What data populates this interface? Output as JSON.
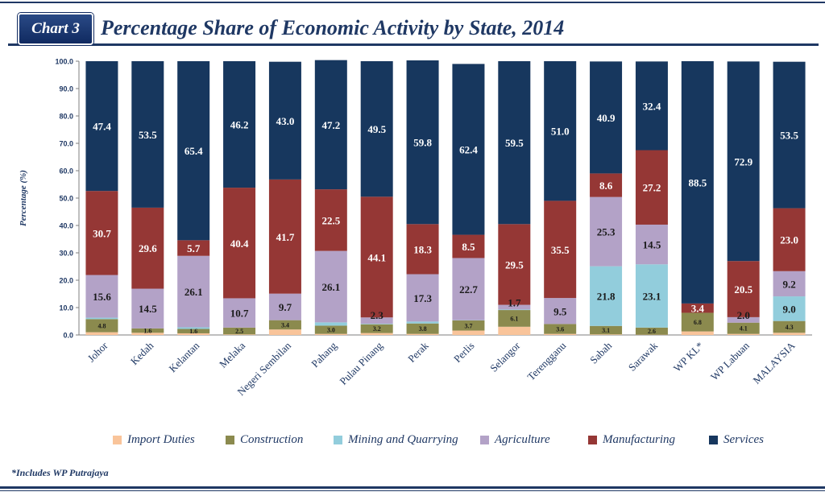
{
  "header": {
    "badge": "Chart 3",
    "title": "Percentage Share of Economic Activity by State, 2014"
  },
  "footnote": "*Includes WP Putrajaya",
  "colors": {
    "import_duties": "#f9c49a",
    "construction": "#8b8a4e",
    "mining": "#92cddc",
    "agriculture": "#b3a2c7",
    "manufacturing": "#953735",
    "services": "#17375e"
  },
  "chart_data": {
    "type": "bar",
    "stacked": true,
    "ylabel": "Percentage  (%)",
    "ylim": [
      0,
      100
    ],
    "yticks": [
      "0.0",
      "10.0",
      "20.0",
      "30.0",
      "40.0",
      "50.0",
      "60.0",
      "70.0",
      "80.0",
      "90.0",
      "100.0"
    ],
    "categories": [
      "Johor",
      "Kedah",
      "Kelantan",
      "Melaka",
      "Negeri Sembilan",
      "Pahang",
      "Pulau Pinang",
      "Perak",
      "Perlis",
      "Selangor",
      "Terengganu",
      "Sabah",
      "Sarawak",
      "WP KL*",
      "WP Labuan",
      "MALAYSIA"
    ],
    "legend_position": "bottom",
    "series": [
      {
        "name": "Import Duties",
        "key": "import_duties",
        "values": [
          1.0,
          0.8,
          0.6,
          0.2,
          2.0,
          0.4,
          0.7,
          0.4,
          1.6,
          3.0,
          0.4,
          0.2,
          0.1,
          1.3,
          0.4,
          0.8
        ],
        "labels": [
          "",
          "",
          "",
          "",
          "",
          "",
          "",
          "",
          "",
          "",
          "",
          "",
          "",
          "",
          "",
          ""
        ]
      },
      {
        "name": "Construction",
        "key": "construction",
        "values": [
          4.8,
          1.6,
          1.6,
          2.5,
          3.4,
          3.0,
          3.2,
          3.8,
          3.7,
          6.1,
          3.6,
          3.1,
          2.6,
          6.8,
          4.1,
          4.3
        ],
        "labels": [
          "4.8",
          "1.6",
          "1.6",
          "2.5",
          "3.4",
          "3.0",
          "3.2",
          "3.8",
          "3.7",
          "6.1",
          "3.6",
          "3.1",
          "2.6",
          "6.8",
          "4.1",
          "4.3"
        ]
      },
      {
        "name": "Mining and Quarrying",
        "key": "mining",
        "values": [
          0.5,
          0.0,
          0.6,
          0.0,
          0.0,
          1.2,
          0.2,
          0.7,
          0.1,
          0.2,
          0.0,
          21.8,
          23.1,
          0.0,
          0.0,
          9.0
        ],
        "labels": [
          "",
          "",
          "",
          "",
          "",
          "",
          "",
          "",
          "",
          "",
          "",
          "21.8",
          "23.1",
          "",
          "",
          "9.0"
        ]
      },
      {
        "name": "Agriculture",
        "key": "agriculture",
        "values": [
          15.6,
          14.5,
          26.1,
          10.7,
          9.7,
          26.1,
          2.3,
          17.3,
          22.7,
          1.7,
          9.5,
          25.3,
          14.5,
          0.0,
          2.0,
          9.2
        ],
        "labels": [
          "15.6",
          "14.5",
          "26.1",
          "10.7",
          "9.7",
          "26.1",
          "2.3",
          "17.3",
          "22.7",
          "1.7",
          "9.5",
          "25.3",
          "14.5",
          "",
          "2.0",
          "9.2"
        ]
      },
      {
        "name": "Manufacturing",
        "key": "manufacturing",
        "values": [
          30.7,
          29.6,
          5.7,
          40.4,
          41.7,
          22.5,
          44.1,
          18.3,
          8.5,
          29.5,
          35.5,
          8.6,
          27.2,
          3.4,
          20.5,
          23.0
        ],
        "labels": [
          "30.7",
          "29.6",
          "5.7",
          "40.4",
          "41.7",
          "22.5",
          "44.1",
          "18.3",
          "8.5",
          "29.5",
          "35.5",
          "8.6",
          "27.2",
          "3.4",
          "20.5",
          "23.0"
        ]
      },
      {
        "name": "Services",
        "key": "services",
        "values": [
          47.4,
          53.5,
          65.4,
          46.2,
          43.0,
          47.2,
          49.5,
          59.8,
          62.4,
          59.5,
          51.0,
          40.9,
          32.4,
          88.5,
          72.9,
          53.5
        ],
        "labels": [
          "47.4",
          "53.5",
          "65.4",
          "46.2",
          "43.0",
          "47.2",
          "49.5",
          "59.8",
          "62.4",
          "59.5",
          "51.0",
          "40.9",
          "32.4",
          "88.5",
          "72.9",
          "53.5"
        ]
      }
    ]
  }
}
